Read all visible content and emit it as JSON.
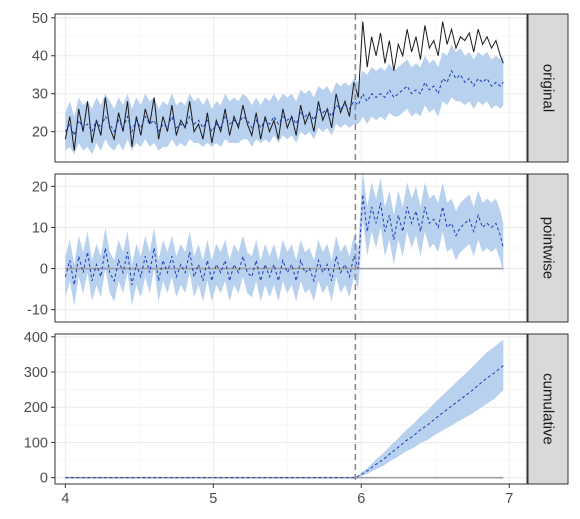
{
  "chart_data": {
    "type": "line",
    "x_ticks": [
      4,
      5,
      6,
      7
    ],
    "x_ticks_labels": [
      "4",
      "5",
      "6",
      "7"
    ],
    "intervention_x": 5.96,
    "colors": {
      "band": "#b8d1ef",
      "mean_line": "#1f3bb3",
      "actual_line": "#1a1a1a",
      "zero_line": "#9e9e9e",
      "strip_bg": "#d9d9d9",
      "grid": "#ebebeb",
      "vline": "#8c8c8c"
    },
    "panels": [
      {
        "strip_label": "original",
        "ylim": [
          12,
          51
        ],
        "y_ticks": [
          20,
          30,
          40,
          50
        ],
        "x": [
          4.0,
          4.03,
          4.06,
          4.09,
          4.12,
          4.15,
          4.18,
          4.21,
          4.24,
          4.27,
          4.3,
          4.33,
          4.36,
          4.39,
          4.42,
          4.45,
          4.48,
          4.51,
          4.54,
          4.57,
          4.6,
          4.63,
          4.66,
          4.69,
          4.72,
          4.75,
          4.78,
          4.81,
          4.84,
          4.87,
          4.9,
          4.93,
          4.96,
          4.99,
          5.02,
          5.05,
          5.08,
          5.11,
          5.14,
          5.17,
          5.2,
          5.23,
          5.26,
          5.29,
          5.32,
          5.35,
          5.38,
          5.41,
          5.44,
          5.47,
          5.5,
          5.53,
          5.56,
          5.59,
          5.62,
          5.65,
          5.68,
          5.71,
          5.74,
          5.77,
          5.8,
          5.83,
          5.86,
          5.89,
          5.92,
          5.95,
          5.98,
          6.01,
          6.04,
          6.07,
          6.1,
          6.13,
          6.16,
          6.19,
          6.22,
          6.25,
          6.28,
          6.31,
          6.34,
          6.37,
          6.4,
          6.43,
          6.46,
          6.49,
          6.52,
          6.55,
          6.58,
          6.61,
          6.64,
          6.67,
          6.7,
          6.73,
          6.76,
          6.79,
          6.82,
          6.85,
          6.88,
          6.91,
          6.94,
          6.96
        ],
        "actual": [
          18,
          24,
          15,
          26,
          20,
          28,
          17,
          23,
          19,
          29,
          21,
          18,
          25,
          20,
          28,
          16,
          24,
          19,
          26,
          22,
          29,
          18,
          24,
          20,
          27,
          19,
          23,
          21,
          28,
          20,
          22,
          18,
          25,
          17,
          23,
          20,
          26,
          19,
          24,
          21,
          27,
          22,
          19,
          25,
          18,
          24,
          20,
          23,
          18,
          26,
          21,
          24,
          19,
          27,
          22,
          25,
          20,
          28,
          23,
          26,
          21,
          30,
          25,
          28,
          24,
          33,
          29,
          49,
          37,
          45,
          40,
          46,
          38,
          44,
          36,
          43,
          40,
          47,
          41,
          45,
          39,
          48,
          42,
          44,
          40,
          49,
          43,
          47,
          42,
          45,
          44,
          46,
          41,
          47,
          43,
          45,
          42,
          44,
          40,
          38
        ],
        "mean": [
          20,
          22,
          19,
          23,
          21,
          22,
          20,
          23,
          21,
          24,
          22,
          20,
          23,
          21,
          24,
          20,
          23,
          21,
          24,
          22,
          23,
          20,
          22,
          21,
          24,
          21,
          22,
          21,
          24,
          22,
          23,
          21,
          23,
          20,
          22,
          21,
          24,
          22,
          23,
          22,
          24,
          23,
          21,
          23,
          21,
          23,
          22,
          24,
          22,
          24,
          23,
          24,
          22,
          25,
          24,
          25,
          23,
          26,
          25,
          26,
          24,
          27,
          26,
          27,
          26,
          28,
          27,
          30,
          28,
          30,
          29,
          30,
          29,
          31,
          29,
          30,
          31,
          32,
          30,
          31,
          30,
          33,
          31,
          32,
          30,
          34,
          33,
          36,
          34,
          35,
          33,
          34,
          32,
          34,
          33,
          34,
          32,
          33,
          32,
          33
        ],
        "lower": [
          15,
          16,
          14,
          17,
          15,
          16,
          14,
          17,
          15,
          18,
          16,
          15,
          17,
          15,
          18,
          15,
          17,
          16,
          18,
          16,
          17,
          15,
          16,
          16,
          18,
          16,
          17,
          16,
          18,
          17,
          17,
          16,
          17,
          16,
          17,
          16,
          18,
          17,
          17,
          17,
          18,
          18,
          16,
          18,
          17,
          18,
          17,
          19,
          17,
          19,
          18,
          19,
          17,
          20,
          19,
          20,
          18,
          21,
          20,
          21,
          19,
          22,
          21,
          22,
          21,
          22,
          22,
          24,
          22,
          24,
          23,
          24,
          23,
          25,
          24,
          24,
          25,
          26,
          24,
          25,
          24,
          27,
          25,
          26,
          24,
          28,
          27,
          29,
          28,
          28,
          27,
          28,
          26,
          28,
          27,
          28,
          26,
          27,
          26,
          27
        ],
        "upper": [
          25,
          28,
          24,
          29,
          27,
          28,
          26,
          29,
          27,
          30,
          28,
          26,
          29,
          27,
          30,
          26,
          29,
          27,
          30,
          28,
          29,
          26,
          28,
          27,
          30,
          27,
          28,
          27,
          30,
          28,
          29,
          27,
          29,
          26,
          28,
          27,
          30,
          28,
          29,
          28,
          30,
          29,
          27,
          29,
          27,
          29,
          28,
          30,
          28,
          30,
          29,
          30,
          28,
          31,
          30,
          31,
          29,
          32,
          31,
          32,
          30,
          33,
          32,
          33,
          32,
          34,
          33,
          36,
          35,
          37,
          36,
          37,
          36,
          38,
          36,
          37,
          38,
          39,
          37,
          38,
          37,
          40,
          38,
          39,
          37,
          41,
          40,
          43,
          41,
          42,
          40,
          41,
          39,
          41,
          40,
          41,
          39,
          40,
          39,
          40
        ],
        "zero": false
      },
      {
        "strip_label": "pointwise",
        "ylim": [
          -13,
          23
        ],
        "y_ticks": [
          -10,
          0,
          10,
          20
        ],
        "x": [
          4.0,
          4.03,
          4.06,
          4.09,
          4.12,
          4.15,
          4.18,
          4.21,
          4.24,
          4.27,
          4.3,
          4.33,
          4.36,
          4.39,
          4.42,
          4.45,
          4.48,
          4.51,
          4.54,
          4.57,
          4.6,
          4.63,
          4.66,
          4.69,
          4.72,
          4.75,
          4.78,
          4.81,
          4.84,
          4.87,
          4.9,
          4.93,
          4.96,
          4.99,
          5.02,
          5.05,
          5.08,
          5.11,
          5.14,
          5.17,
          5.2,
          5.23,
          5.26,
          5.29,
          5.32,
          5.35,
          5.38,
          5.41,
          5.44,
          5.47,
          5.5,
          5.53,
          5.56,
          5.59,
          5.62,
          5.65,
          5.68,
          5.71,
          5.74,
          5.77,
          5.8,
          5.83,
          5.86,
          5.89,
          5.92,
          5.95,
          5.98,
          6.01,
          6.04,
          6.07,
          6.1,
          6.13,
          6.16,
          6.19,
          6.22,
          6.25,
          6.28,
          6.31,
          6.34,
          6.37,
          6.4,
          6.43,
          6.46,
          6.49,
          6.52,
          6.55,
          6.58,
          6.61,
          6.64,
          6.67,
          6.7,
          6.73,
          6.76,
          6.79,
          6.82,
          6.85,
          6.88,
          6.91,
          6.94,
          6.96
        ],
        "mean": [
          -2,
          2,
          -4,
          3,
          -1,
          4,
          -3,
          1,
          -2,
          5,
          -1,
          -3,
          2,
          -1,
          4,
          -4,
          1,
          -2,
          3,
          -1,
          5,
          -3,
          2,
          -1,
          3,
          -2,
          1,
          -1,
          4,
          -2,
          1,
          -3,
          2,
          -3,
          1,
          -1,
          2,
          -3,
          1,
          -1,
          3,
          -1,
          -2,
          2,
          -3,
          1,
          -2,
          1,
          -3,
          2,
          -1,
          1,
          -3,
          2,
          -1,
          0,
          -3,
          2,
          -1,
          1,
          -3,
          3,
          -1,
          1,
          -2,
          3,
          0,
          18,
          9,
          15,
          11,
          16,
          9,
          13,
          7,
          13,
          9,
          15,
          11,
          14,
          9,
          15,
          11,
          12,
          10,
          15,
          10,
          11,
          8,
          10,
          11,
          12,
          9,
          13,
          10,
          11,
          10,
          11,
          8,
          5
        ],
        "lower": [
          -7,
          -3,
          -9,
          -2,
          -6,
          -1,
          -8,
          -4,
          -7,
          0,
          -6,
          -8,
          -3,
          -6,
          -1,
          -9,
          -4,
          -7,
          -2,
          -6,
          0,
          -8,
          -3,
          -6,
          -2,
          -7,
          -4,
          -6,
          -1,
          -7,
          -4,
          -8,
          -3,
          -8,
          -4,
          -6,
          -3,
          -8,
          -4,
          -6,
          -2,
          -6,
          -7,
          -3,
          -8,
          -4,
          -7,
          -4,
          -8,
          -3,
          -6,
          -4,
          -8,
          -3,
          -6,
          -5,
          -8,
          -3,
          -6,
          -4,
          -8,
          -2,
          -6,
          -4,
          -7,
          -2,
          -5,
          12,
          3,
          9,
          5,
          10,
          3,
          7,
          1,
          7,
          3,
          9,
          5,
          8,
          3,
          9,
          5,
          6,
          4,
          9,
          4,
          5,
          2,
          4,
          5,
          6,
          3,
          7,
          4,
          5,
          4,
          5,
          2,
          -1
        ],
        "upper": [
          3,
          7,
          1,
          8,
          4,
          9,
          2,
          6,
          3,
          10,
          4,
          2,
          7,
          4,
          9,
          1,
          6,
          3,
          8,
          4,
          10,
          2,
          7,
          4,
          8,
          3,
          6,
          4,
          9,
          3,
          6,
          2,
          7,
          2,
          6,
          4,
          7,
          2,
          6,
          4,
          8,
          4,
          3,
          7,
          2,
          6,
          3,
          6,
          2,
          7,
          4,
          6,
          2,
          7,
          4,
          5,
          2,
          7,
          4,
          6,
          2,
          8,
          4,
          6,
          3,
          8,
          5,
          24,
          15,
          21,
          17,
          22,
          15,
          19,
          13,
          19,
          15,
          21,
          17,
          20,
          15,
          21,
          17,
          18,
          16,
          21,
          16,
          17,
          14,
          16,
          17,
          18,
          15,
          19,
          16,
          17,
          16,
          17,
          14,
          11
        ],
        "zero": true
      },
      {
        "strip_label": "cumulative",
        "ylim": [
          -18,
          408
        ],
        "y_ticks": [
          0,
          100,
          200,
          300,
          400
        ],
        "x": [
          4.0,
          4.5,
          5.0,
          5.5,
          5.96,
          6.0,
          6.05,
          6.1,
          6.15,
          6.2,
          6.25,
          6.3,
          6.35,
          6.4,
          6.45,
          6.5,
          6.55,
          6.6,
          6.65,
          6.7,
          6.75,
          6.8,
          6.85,
          6.9,
          6.96
        ],
        "mean": [
          0,
          0,
          0,
          0,
          0,
          9,
          22,
          38,
          52,
          70,
          86,
          104,
          118,
          136,
          150,
          168,
          184,
          200,
          216,
          232,
          248,
          266,
          283,
          298,
          318
        ],
        "lower": [
          0,
          0,
          0,
          0,
          0,
          4,
          13,
          24,
          34,
          48,
          60,
          74,
          84,
          98,
          108,
          122,
          134,
          146,
          158,
          170,
          182,
          196,
          210,
          224,
          248
        ],
        "upper": [
          0,
          0,
          0,
          0,
          0,
          14,
          31,
          52,
          70,
          92,
          112,
          134,
          152,
          174,
          192,
          214,
          234,
          254,
          274,
          294,
          314,
          336,
          356,
          372,
          392
        ],
        "zero": true
      }
    ]
  }
}
